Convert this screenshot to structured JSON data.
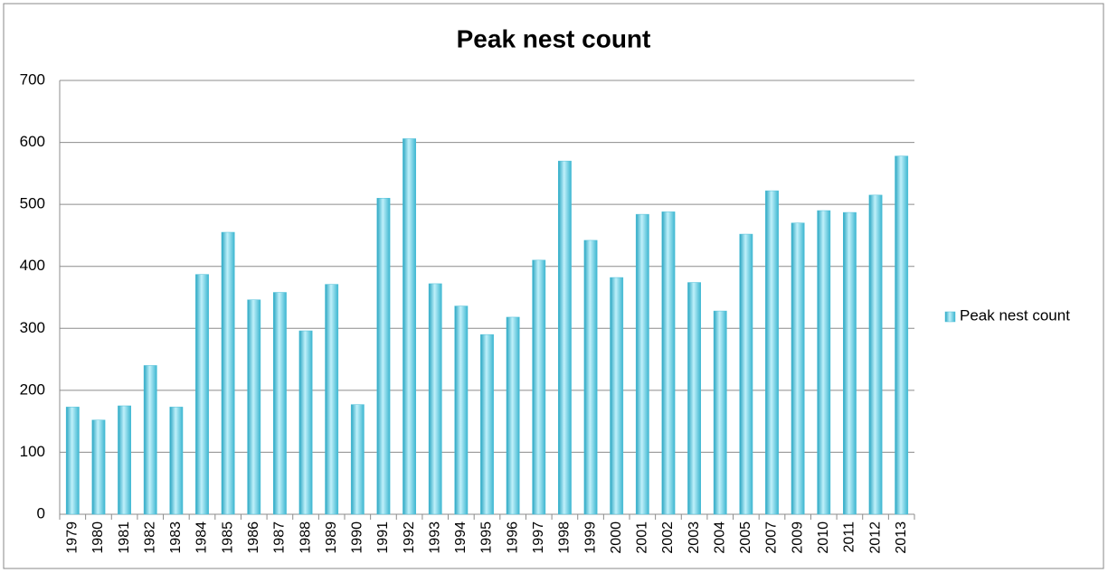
{
  "chart_data": {
    "type": "bar",
    "title": "Peak nest count",
    "categories": [
      "1979",
      "1980",
      "1981",
      "1982",
      "1983",
      "1984",
      "1985",
      "1986",
      "1987",
      "1988",
      "1989",
      "1990",
      "1991",
      "1992",
      "1993",
      "1994",
      "1995",
      "1996",
      "1997",
      "1998",
      "1999",
      "2000",
      "2001",
      "2002",
      "2003",
      "2004",
      "2005",
      "2007",
      "2009",
      "2010",
      "2011",
      "2012",
      "2013"
    ],
    "series": [
      {
        "name": "Peak nest count",
        "color": "#4bbfd8",
        "values": [
          173,
          152,
          175,
          240,
          173,
          387,
          455,
          346,
          358,
          296,
          371,
          177,
          510,
          606,
          372,
          336,
          290,
          318,
          410,
          570,
          442,
          382,
          484,
          488,
          374,
          328,
          452,
          522,
          470,
          490,
          487,
          515,
          578
        ]
      }
    ],
    "ylim": [
      0,
      700
    ],
    "yticks": [
      0,
      100,
      200,
      300,
      400,
      500,
      600,
      700
    ],
    "grid": true,
    "legend": "right"
  }
}
